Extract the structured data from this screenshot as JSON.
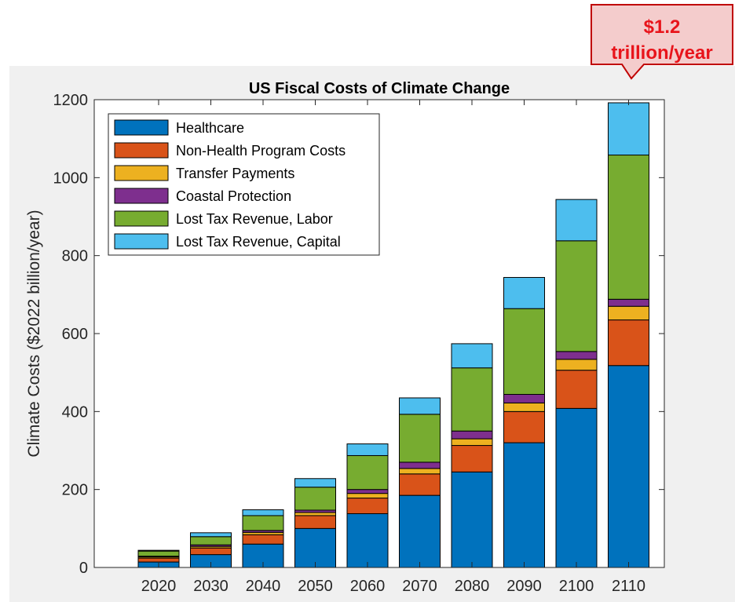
{
  "callout": {
    "text": "$1.2\ntrillion/year",
    "text_color": "#e8141b",
    "fill": "#f4cccc",
    "border": "#c00000"
  },
  "colors": {
    "figure_background": "#f0f0f0",
    "axes_background": "#ffffff"
  },
  "chart_data": {
    "type": "bar",
    "stacked": true,
    "title": "US Fiscal Costs of Climate Change",
    "xlabel": "",
    "ylabel": "Climate Costs ($2022 billion/year)",
    "ylim": [
      0,
      1200
    ],
    "yticks": [
      0,
      200,
      400,
      600,
      800,
      1000,
      1200
    ],
    "categories": [
      "2020",
      "2030",
      "2040",
      "2050",
      "2060",
      "2070",
      "2080",
      "2090",
      "2100",
      "2110"
    ],
    "legend_position": "top-left",
    "grid": false,
    "series": [
      {
        "name": "Healthcare",
        "color": "#0072bd",
        "values": [
          14,
          33,
          60,
          100,
          138,
          185,
          245,
          320,
          408,
          518
        ]
      },
      {
        "name": "Non-Health Program Costs",
        "color": "#d95319",
        "values": [
          10,
          17,
          24,
          33,
          40,
          55,
          68,
          80,
          98,
          117
        ]
      },
      {
        "name": "Transfer Payments",
        "color": "#edb120",
        "values": [
          3,
          4,
          6,
          8,
          12,
          14,
          17,
          22,
          28,
          35
        ]
      },
      {
        "name": "Coastal Protection",
        "color": "#7e2f8e",
        "values": [
          2,
          4,
          5,
          6,
          10,
          16,
          20,
          22,
          20,
          18
        ]
      },
      {
        "name": "Lost Tax Revenue, Labor",
        "color": "#77ac30",
        "values": [
          13,
          21,
          38,
          59,
          87,
          123,
          162,
          220,
          284,
          370
        ]
      },
      {
        "name": "Lost Tax Revenue, Capital",
        "color": "#4dbeee",
        "values": [
          2,
          10,
          15,
          22,
          30,
          42,
          62,
          80,
          106,
          134
        ]
      }
    ]
  }
}
